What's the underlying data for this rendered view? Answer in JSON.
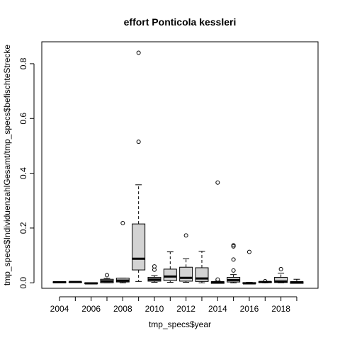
{
  "chart_data": {
    "type": "boxplot",
    "title": "effort Ponticola kessleri",
    "xlabel": "tmp_specs$year",
    "ylabel": "tmp_specs$IndividuenzahlGesamt/tmp_specs$befischteStrecke",
    "ylim": [
      -0.02,
      0.88
    ],
    "yticks": [
      0.0,
      0.2,
      0.4,
      0.6,
      0.8
    ],
    "ytick_labels": [
      "0.0",
      "0.2",
      "0.4",
      "0.6",
      "0.8"
    ],
    "xtick_labels": [
      "2004",
      "2006",
      "2008",
      "2010",
      "2012",
      "2014",
      "2016",
      "2018"
    ],
    "box_fill": "#d3d3d3",
    "boxes": [
      {
        "year": 2004,
        "lw": 0.0,
        "q1": 0.0,
        "med": 0.002,
        "q3": 0.004,
        "uw": 0.004,
        "outliers": []
      },
      {
        "year": 2005,
        "lw": 0.003,
        "q1": 0.003,
        "med": 0.003,
        "q3": 0.003,
        "uw": 0.003,
        "outliers": []
      },
      {
        "year": 2006,
        "lw": 0.0,
        "q1": -0.003,
        "med": -0.002,
        "q3": 0.0,
        "uw": 0.0,
        "outliers": []
      },
      {
        "year": 2007,
        "lw": 0.0,
        "q1": 0.0,
        "med": 0.006,
        "q3": 0.013,
        "uw": 0.016,
        "outliers": [
          0.028
        ]
      },
      {
        "year": 2008,
        "lw": 0.0,
        "q1": 0.003,
        "med": 0.008,
        "q3": 0.017,
        "uw": 0.017,
        "outliers": [
          0.218
        ]
      },
      {
        "year": 2009,
        "lw": 0.005,
        "q1": 0.047,
        "med": 0.088,
        "q3": 0.215,
        "uw": 0.358,
        "outliers": [
          0.515,
          0.84
        ]
      },
      {
        "year": 2010,
        "lw": 0.002,
        "q1": 0.006,
        "med": 0.012,
        "q3": 0.02,
        "uw": 0.026,
        "outliers": [
          0.048,
          0.06
        ]
      },
      {
        "year": 2011,
        "lw": 0.002,
        "q1": 0.008,
        "med": 0.023,
        "q3": 0.05,
        "uw": 0.113,
        "outliers": []
      },
      {
        "year": 2012,
        "lw": 0.002,
        "q1": 0.006,
        "med": 0.018,
        "q3": 0.057,
        "uw": 0.088,
        "outliers": [
          0.173
        ]
      },
      {
        "year": 2013,
        "lw": 0.0,
        "q1": 0.005,
        "med": 0.016,
        "q3": 0.055,
        "uw": 0.115,
        "outliers": []
      },
      {
        "year": 2014,
        "lw": 0.0,
        "q1": -0.002,
        "med": 0.002,
        "q3": 0.004,
        "uw": 0.006,
        "outliers": [
          0.012,
          0.366
        ]
      },
      {
        "year": 2015,
        "lw": 0.0,
        "q1": 0.003,
        "med": 0.01,
        "q3": 0.02,
        "uw": 0.03,
        "outliers": [
          0.045,
          0.085,
          0.133,
          0.137
        ]
      },
      {
        "year": 2016,
        "lw": 0.0,
        "q1": -0.003,
        "med": -0.002,
        "q3": 0.001,
        "uw": 0.002,
        "outliers": [
          0.113
        ]
      },
      {
        "year": 2017,
        "lw": 0.0,
        "q1": 0.001,
        "med": 0.003,
        "q3": 0.004,
        "uw": 0.004,
        "outliers": [
          0.006
        ]
      },
      {
        "year": 2018,
        "lw": 0.0,
        "q1": 0.001,
        "med": 0.005,
        "q3": 0.02,
        "uw": 0.035,
        "outliers": [
          0.05
        ]
      },
      {
        "year": 2019,
        "lw": 0.0,
        "q1": -0.002,
        "med": 0.002,
        "q3": 0.004,
        "uw": 0.013,
        "outliers": []
      }
    ]
  }
}
